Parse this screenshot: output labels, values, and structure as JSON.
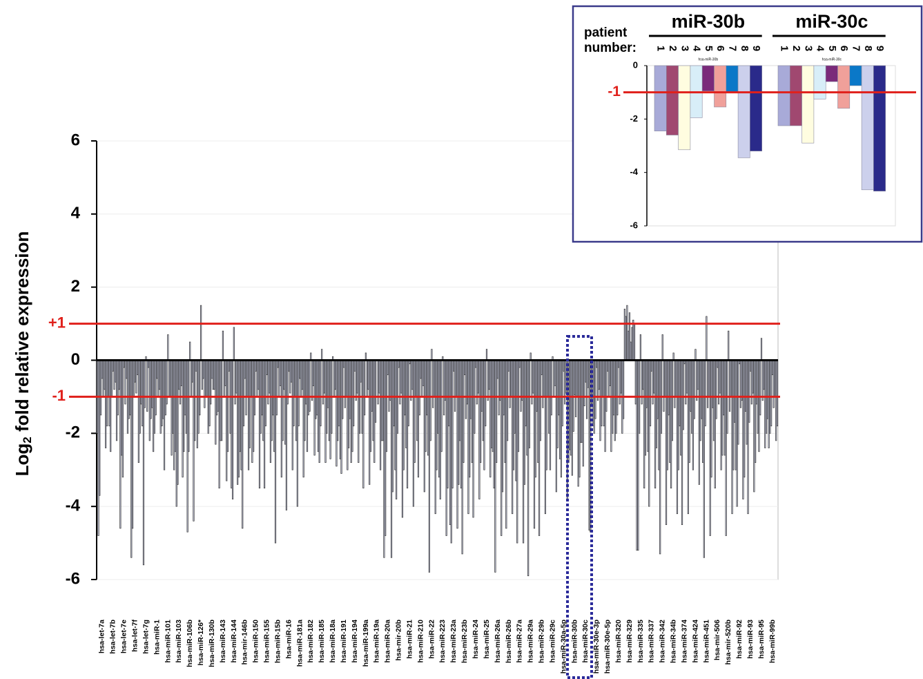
{
  "chart_data": [
    {
      "type": "bar",
      "ylabel": {
        "base": "Log",
        "sub": "2",
        "rest": " fold relative expression"
      },
      "categories": [
        "hsa-let-7a",
        "hsa-let-7b",
        "hsa-let-7e",
        "hsa-let-7f",
        "hsa-let-7g",
        "hsa-miR-1",
        "hsa-miR-101",
        "hsa-miR-103",
        "hsa-miR-106b",
        "hsa-miR-126*",
        "hsa-miR-130b",
        "hsa-miR-143",
        "hsa-miR-144",
        "hsa-mir-146b",
        "hsa-miR-150",
        "hsa-miR-155",
        "hsa-miR-15b",
        "hsa-miR-16",
        "hsa-miR-181a",
        "hsa-miR-182",
        "hsa-miR-185",
        "hsa-miR-18a",
        "hsa-miR-191",
        "hsa-miR-194",
        "hsa-miR-199a",
        "hsa-miR-19a",
        "hsa-miR-20a",
        "hsa-mir-20b",
        "hsa-miR-21",
        "hsa-miR-210",
        "hsa-miR-22",
        "hsa-miR-223",
        "hsa-miR-23a",
        "hsa-miR-23b",
        "hsa-miR-24",
        "hsa-miR-25",
        "hsa-miR-26a",
        "hsa-miR-26b",
        "hsa-miR-27a",
        "hsa-miR-29a",
        "hsa-miR-29b",
        "hsa-miR-29c",
        "hsa-miR-30a-5p",
        "hsa-miR-30b",
        "hsa-miR-30c",
        "hsa-miR-30e-3p",
        "hsa-miR-30e-5p",
        "hsa-miR-320",
        "hsa-miR-329",
        "hsa-miR-335",
        "hsa-miR-337",
        "hsa-miR-342",
        "hsa-miR-34b",
        "hsa-miR-374",
        "hsa-miR-424",
        "hsa-miR-451",
        "hsa-mir-506",
        "hsa-mir-520b",
        "hsa-miR-92",
        "hsa-miR-93",
        "hsa-miR-95",
        "hsa-miR-99b"
      ],
      "series": [
        {
          "color": "#c9cce2",
          "values": [
            -2.0,
            -1.0,
            -0.8,
            -1.5,
            -1.2,
            -1.3,
            -1.6,
            -3.0,
            -1.5,
            -0.3,
            -1.0,
            -1.4,
            -0.3,
            -2.5,
            -1.0,
            -1.5,
            -1.5,
            -0.8,
            -1.0,
            -1.2,
            -1.5,
            -1.3,
            -1.8,
            -1.6,
            -0.6,
            -1.4,
            -2.2,
            -1.8,
            -1.5,
            -1.0,
            -1.5,
            -2.0,
            -1.8,
            -2.2,
            -1.6,
            -1.4,
            -2.5,
            -1.5,
            -2.0,
            -1.8,
            -1.4,
            -1.0,
            -1.5,
            -2.45,
            -2.25,
            -1.2,
            -1.0,
            -1.5,
            1.4,
            -1.2,
            -1.3,
            -1.6,
            -1.5,
            -1.8,
            -1.4,
            -1.6,
            -1.3,
            -1.5,
            -1.7,
            -1.4,
            -1.2,
            -1.6
          ]
        },
        {
          "color": "#c9cce2",
          "values": [
            -4.8,
            -1.8,
            -4.6,
            -5.4,
            -1.8,
            -2.5,
            -3.0,
            -2.5,
            -2.0,
            -2.4,
            -2.0,
            -3.5,
            -2.0,
            -3.0,
            -2.8,
            -2.2,
            -2.5,
            -2.3,
            -2.2,
            -2.5,
            -2.5,
            -2.2,
            -2.7,
            -2.8,
            -2.0,
            -2.2,
            -5.4,
            -3.0,
            -2.4,
            -2.2,
            -2.6,
            -3.2,
            -4.5,
            -3.5,
            -2.8,
            -2.2,
            -3.5,
            -2.8,
            -3.3,
            -2.6,
            -2.8,
            -2.0,
            -2.7,
            -2.6,
            -2.25,
            -1.8,
            -1.8,
            -2.2,
            1.2,
            -5.2,
            -2.5,
            -3.0,
            -2.8,
            -2.6,
            -2.0,
            -2.8,
            -2.2,
            -2.6,
            -3.0,
            -2.3,
            -2.0,
            -2.4
          ]
        },
        {
          "color": "#c9cce2",
          "values": [
            -3.7,
            -2.5,
            -2.6,
            -4.6,
            -5.6,
            -2.0,
            -1.5,
            -4.0,
            -4.7,
            -2.0,
            -1.8,
            -2.2,
            -3.5,
            -4.6,
            -2.5,
            -3.5,
            -5.0,
            -4.1,
            -4.0,
            -1.5,
            -2.8,
            -2.7,
            -3.1,
            -2.5,
            -3.5,
            -2.8,
            -4.8,
            -3.8,
            -3.5,
            -3.2,
            -5.8,
            -3.8,
            -5.0,
            -5.3,
            -4.3,
            -3.0,
            -5.8,
            -4.6,
            -5.0,
            -5.9,
            -4.8,
            -3.0,
            -3.2,
            -3.15,
            -2.9,
            -2.0,
            -2.5,
            -2.0,
            1.5,
            -5.2,
            -4.0,
            -5.3,
            -3.5,
            -4.5,
            -3.0,
            -5.4,
            -3.5,
            -4.8,
            -4.0,
            -4.2,
            -2.5,
            -2.0
          ]
        },
        {
          "color": "#c9cce2",
          "values": [
            -1.5,
            -1.0,
            -3.2,
            -1.0,
            -1.3,
            -1.5,
            -1.2,
            -3.4,
            -2.5,
            -1.5,
            -1.2,
            -2.2,
            -3.8,
            -1.8,
            -1.5,
            -1.8,
            -1.5,
            -1.2,
            -1.8,
            -1.4,
            -1.8,
            -2.0,
            -1.6,
            -1.8,
            -1.5,
            -1.7,
            -2.5,
            -2.0,
            -1.8,
            -1.5,
            -2.2,
            -2.5,
            -3.5,
            -2.8,
            -2.0,
            -1.8,
            -2.8,
            -2.2,
            -2.5,
            -2.4,
            -2.2,
            -1.5,
            -1.8,
            -1.95,
            -1.25,
            -1.6,
            -1.4,
            -1.5,
            0.8,
            -2.0,
            -1.8,
            -2.0,
            -2.2,
            -1.9,
            -1.6,
            -1.8,
            -1.6,
            -2.0,
            -2.3,
            -1.7,
            -1.5,
            -1.8
          ]
        },
        {
          "color": "#c9cce2",
          "values": [
            -0.5,
            -0.3,
            -0.2,
            -0.6,
            0.1,
            -0.5,
            0.7,
            -0.8,
            0.5,
            1.5,
            -0.5,
            0.8,
            0.9,
            -0.5,
            -0.3,
            -0.4,
            -0.2,
            -0.3,
            -0.5,
            0.2,
            0.3,
            0.1,
            -0.2,
            -0.3,
            0.2,
            0.0,
            -0.4,
            -0.2,
            -0.1,
            -0.5,
            0.3,
            0.1,
            -0.3,
            -0.4,
            -0.2,
            0.3,
            -0.5,
            -0.3,
            -0.2,
            0.2,
            -0.4,
            0.1,
            -0.3,
            -0.95,
            -0.6,
            -0.2,
            -0.3,
            -0.2,
            1.3,
            0.7,
            -0.3,
            0.7,
            0.2,
            -0.1,
            0.3,
            1.2,
            -0.2,
            0.8,
            -0.1,
            -0.3,
            0.6,
            -0.4
          ]
        },
        {
          "color": "#c9cce2",
          "values": [
            -1.0,
            -0.8,
            -1.2,
            -0.9,
            -1.4,
            -1.0,
            -1.0,
            -1.2,
            -1.0,
            -0.8,
            -0.8,
            -1.0,
            -1.2,
            -1.5,
            -1.0,
            -1.2,
            -1.0,
            -0.9,
            -1.0,
            -1.1,
            -1.2,
            -1.0,
            -1.3,
            -1.1,
            -1.0,
            -1.2,
            -1.4,
            -1.2,
            -1.1,
            -1.0,
            -1.3,
            -1.5,
            -1.4,
            -1.6,
            -1.2,
            -1.1,
            -1.5,
            -1.3,
            -1.4,
            -1.2,
            -1.3,
            -1.0,
            -1.2,
            -1.55,
            -1.6,
            -1.1,
            -1.0,
            -1.2,
            0.5,
            -1.2,
            -1.2,
            -1.4,
            -1.3,
            -1.2,
            -1.1,
            -1.3,
            -1.2,
            -1.4,
            -1.3,
            -1.2,
            -1.1,
            -1.3
          ]
        },
        {
          "color": "#c9cce2",
          "values": [
            -0.8,
            -0.6,
            -0.5,
            -0.4,
            -0.2,
            -0.8,
            -1.0,
            -0.7,
            -0.6,
            -0.5,
            -0.8,
            -0.7,
            -0.9,
            -1.0,
            -0.8,
            -0.9,
            -0.7,
            -0.6,
            -0.8,
            -0.7,
            -0.9,
            -0.8,
            -1.0,
            -0.9,
            -0.8,
            -0.9,
            -1.1,
            -0.9,
            -0.8,
            -0.7,
            -1.0,
            -1.1,
            -1.0,
            -1.2,
            -0.9,
            -0.8,
            -1.1,
            -1.0,
            -1.1,
            -0.9,
            -1.0,
            -0.7,
            -0.9,
            -1.0,
            -0.75,
            -0.8,
            -0.7,
            -0.9,
            0.9,
            -0.8,
            -0.9,
            -1.0,
            -1.0,
            -0.9,
            -0.8,
            -1.0,
            -0.9,
            -1.0,
            -1.1,
            -0.9,
            -0.8,
            -1.0
          ]
        },
        {
          "color": "#c9cce2",
          "values": [
            -2.4,
            -2.2,
            -2.0,
            -2.8,
            -2.2,
            -2.0,
            -2.6,
            -3.2,
            -4.4,
            -1.3,
            -2.3,
            -3.3,
            -3.4,
            -3.0,
            -3.5,
            -2.8,
            -3.2,
            -3.0,
            -3.2,
            -2.6,
            -2.8,
            -2.9,
            -3.0,
            -2.8,
            -3.4,
            -3.0,
            -5.4,
            -4.3,
            -4.0,
            -3.6,
            -4.2,
            -4.8,
            -4.6,
            -4.2,
            -3.8,
            -3.2,
            -4.8,
            -4.2,
            -5.0,
            -4.6,
            -4.2,
            -3.6,
            -3.8,
            -3.45,
            -4.65,
            -2.2,
            -2.5,
            -2.0,
            1.1,
            -3.5,
            -3.5,
            -4.5,
            -4.2,
            -4.2,
            -3.4,
            -4.8,
            -3.0,
            -4.2,
            -3.8,
            -3.6,
            -2.4,
            -2.2
          ]
        },
        {
          "color": "#c9cce2",
          "values": [
            -1.8,
            -1.5,
            -1.6,
            -2.0,
            -1.6,
            -1.8,
            -2.0,
            -2.5,
            -2.2,
            -1.0,
            -1.5,
            -2.5,
            -3.2,
            -2.4,
            -2.0,
            -2.2,
            -2.2,
            -1.8,
            -2.2,
            -1.6,
            -2.0,
            -2.2,
            -2.4,
            -2.0,
            -2.5,
            -2.2,
            -3.6,
            -3.0,
            -2.8,
            -2.5,
            -3.0,
            -3.5,
            -3.4,
            -3.2,
            -2.8,
            -2.4,
            -3.6,
            -3.0,
            -3.4,
            -3.2,
            -3.0,
            -2.4,
            -2.8,
            -3.2,
            -4.7,
            -1.8,
            -2.0,
            -1.6,
            1.0,
            -2.6,
            -2.4,
            -3.0,
            -3.0,
            -2.8,
            -2.2,
            -3.2,
            -2.6,
            -3.0,
            -3.2,
            -2.8,
            -2.0,
            -1.8
          ]
        }
      ],
      "edge_color": "#333333",
      "ylim": [
        -6,
        6
      ],
      "yticks": [
        -6,
        -4,
        -2,
        0,
        2,
        4,
        6
      ],
      "grid": true,
      "reference_lines": [
        {
          "value": 1,
          "label": "+1"
        },
        {
          "value": -1,
          "label": "-1"
        }
      ],
      "reference_color": "#e0201b"
    },
    {
      "type": "grouped_bar",
      "categories": [
        "miR-30b",
        "miR-30c"
      ],
      "sublabels": [
        "hsa-miR-30b",
        "hsa-miR-30c"
      ],
      "patient_label": [
        "patient",
        "number:"
      ],
      "series": [
        {
          "name": "1",
          "color": "#a8aad8",
          "values": [
            -2.45,
            -2.25
          ]
        },
        {
          "name": "2",
          "color": "#a04870",
          "values": [
            -2.6,
            -2.25
          ]
        },
        {
          "name": "3",
          "color": "#fffde0",
          "values": [
            -3.15,
            -2.9
          ]
        },
        {
          "name": "4",
          "color": "#d8eef8",
          "values": [
            -1.95,
            -1.25
          ]
        },
        {
          "name": "5",
          "color": "#7a2a7a",
          "values": [
            -0.95,
            -0.6
          ]
        },
        {
          "name": "6",
          "color": "#f0a09a",
          "values": [
            -1.55,
            -1.6
          ]
        },
        {
          "name": "7",
          "color": "#0a78c8",
          "values": [
            -1.0,
            -0.75
          ]
        },
        {
          "name": "8",
          "color": "#ccd0ec",
          "values": [
            -3.45,
            -4.65
          ]
        },
        {
          "name": "9",
          "color": "#2a2a8a",
          "values": [
            -3.2,
            -4.7
          ]
        }
      ],
      "ylim": [
        -6,
        0
      ],
      "yticks": [
        0,
        -2,
        -4,
        -6
      ],
      "reference_lines": [
        {
          "value": -1,
          "label": "-1"
        }
      ],
      "reference_color": "#e0201b"
    }
  ]
}
